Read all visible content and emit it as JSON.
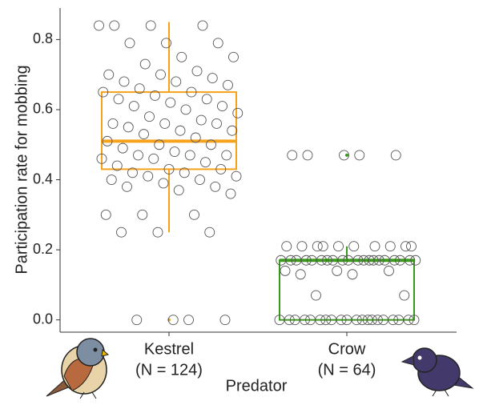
{
  "chart_data": {
    "type": "box",
    "y_label": "Participation rate for mobbing",
    "x_label": "Predator",
    "categories": [
      "Kestrel",
      "Crow"
    ],
    "category_counts": [
      "(N = 124)",
      "(N = 64)"
    ],
    "ylim": [
      -0.035,
      0.89
    ],
    "yticks": [
      {
        "value": 0,
        "label": "0.0"
      },
      0.2,
      0.4,
      0.6,
      0.8
    ],
    "boxes": [
      {
        "color": "#f7a21b",
        "whisker_low": 0.25,
        "q1": 0.43,
        "median": 0.51,
        "q3": 0.65,
        "whisker_high": 0.85,
        "outliers": [
          0
        ]
      },
      {
        "color": "#3a9a1a",
        "whisker_low": 0,
        "q1": 0,
        "median": 0.17,
        "q3": 0.17,
        "whisker_high": 0.21,
        "outliers": [
          0.47
        ]
      }
    ],
    "points": [
      [
        0.84,
        0.84,
        0.84,
        0.84,
        0.79,
        0.79,
        0.79,
        0.75,
        0.75,
        0.73,
        0.71,
        0.7,
        0.7,
        0.69,
        0.68,
        0.68,
        0.67,
        0.66,
        0.65,
        0.65,
        0.64,
        0.63,
        0.63,
        0.62,
        0.61,
        0.61,
        0.6,
        0.59,
        0.58,
        0.57,
        0.56,
        0.56,
        0.56,
        0.55,
        0.54,
        0.54,
        0.53,
        0.52,
        0.51,
        0.5,
        0.5,
        0.49,
        0.48,
        0.47,
        0.47,
        0.47,
        0.46,
        0.46,
        0.45,
        0.44,
        0.43,
        0.43,
        0.42,
        0.42,
        0.41,
        0.41,
        0.4,
        0.4,
        0.39,
        0.38,
        0.38,
        0.37,
        0.36,
        0.3,
        0.3,
        0.3,
        0.25,
        0.25,
        0.25,
        0,
        0,
        0,
        0
      ],
      [
        0.47,
        0.47,
        0.47,
        0.47,
        0.47,
        0.21,
        0.21,
        0.21,
        0.21,
        0.21,
        0.21,
        0.21,
        0.21,
        0.21,
        0.21,
        0.17,
        0.17,
        0.17,
        0.17,
        0.17,
        0.17,
        0.17,
        0.17,
        0.17,
        0.17,
        0.17,
        0.17,
        0.17,
        0.17,
        0.17,
        0.17,
        0.17,
        0.17,
        0.17,
        0.17,
        0.14,
        0.14,
        0.14,
        0.13,
        0.13,
        0.07,
        0.07,
        0,
        0,
        0,
        0,
        0,
        0,
        0,
        0,
        0,
        0,
        0,
        0,
        0,
        0,
        0,
        0,
        0,
        0,
        0,
        0
      ]
    ]
  }
}
